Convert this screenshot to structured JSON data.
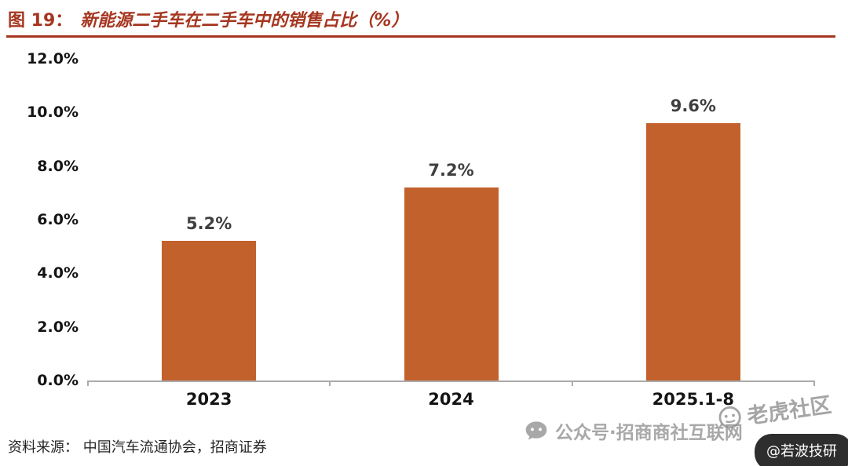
{
  "header": {
    "prefix": "图 19：",
    "title": "新能源二手车在二手车中的销售占比（%）"
  },
  "chart_data": {
    "type": "bar",
    "title": "新能源二手车在二手车中的销售占比（%）",
    "categories": [
      "2023",
      "2024",
      "2025.1-8"
    ],
    "values": [
      5.2,
      7.2,
      9.6
    ],
    "value_labels": [
      "5.2%",
      "7.2%",
      "9.6%"
    ],
    "ylim": [
      0,
      12
    ],
    "ytick_labels": [
      "0.0%",
      "2.0%",
      "4.0%",
      "6.0%",
      "8.0%",
      "10.0%",
      "12.0%"
    ],
    "xlabel": "",
    "ylabel": "",
    "grid": false,
    "legend": "none",
    "bar_color": "#C2612C"
  },
  "footer": {
    "source": "资料来源： 中国汽车流通协会，招商证券"
  },
  "watermarks": {
    "wechat_text": "公众号·招商商社互联网",
    "tiger_text": "老虎社区",
    "badge_text": "@若波技研"
  },
  "colors": {
    "title": "#A5361F",
    "bar": "#C2612C",
    "axis": "#ABABAB",
    "value_label": "#3F3F3F"
  }
}
